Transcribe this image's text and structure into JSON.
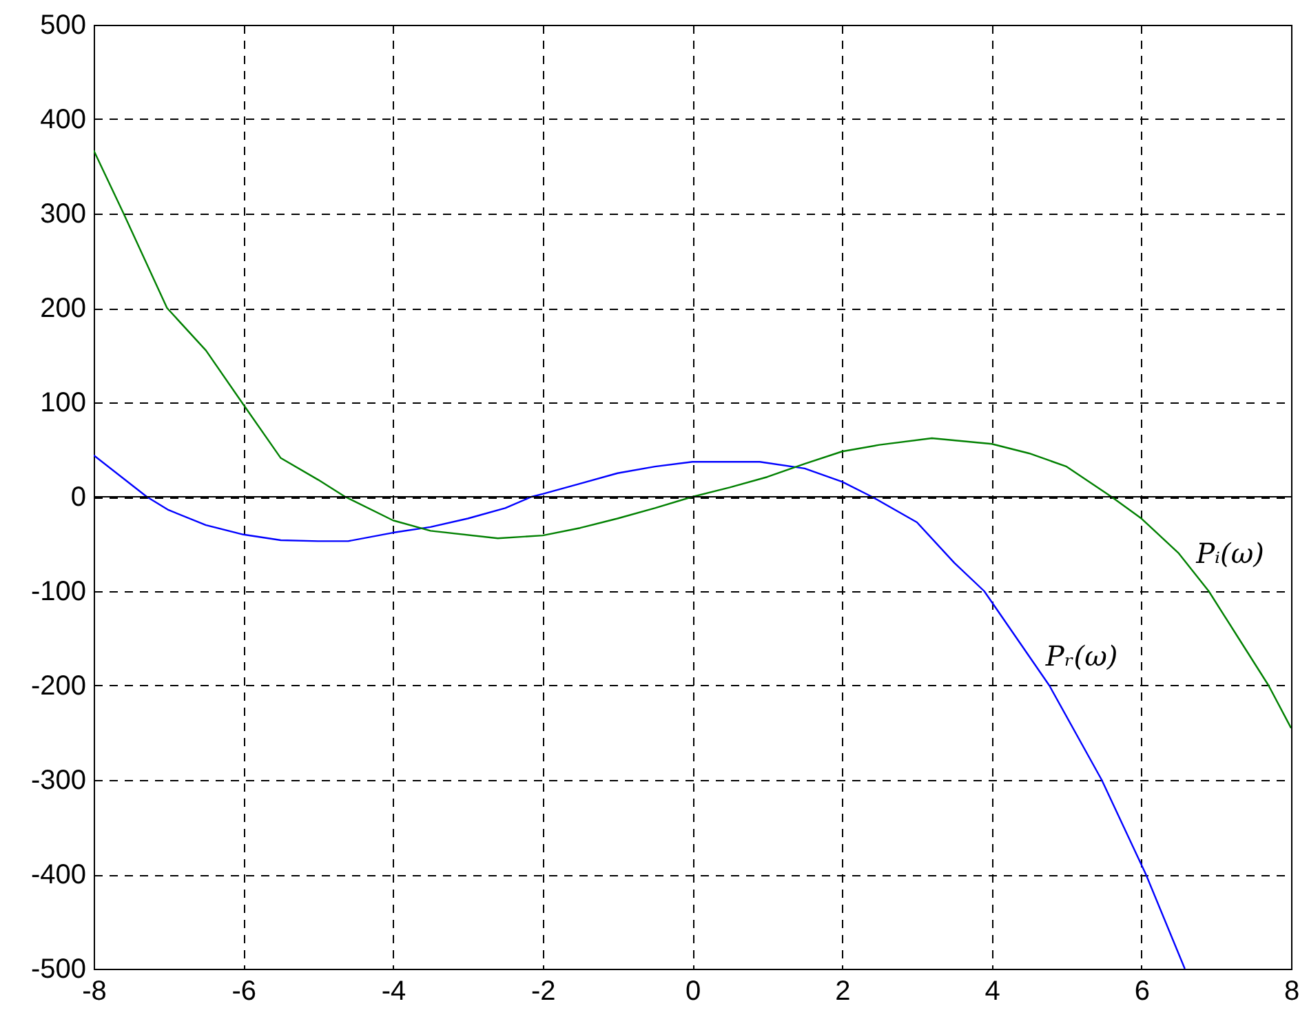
{
  "chart_data": {
    "type": "line",
    "series": [
      {
        "color": "#0000ff",
        "x": [
          -8,
          -7.29,
          -7,
          -6.5,
          -6,
          -5.5,
          -5,
          -4.6,
          -4,
          -3.5,
          -3,
          -2.5,
          -2.15,
          -2,
          -1.5,
          -1,
          -0.5,
          0,
          0.5,
          0.9,
          1.5,
          2,
          2.4,
          3,
          3.5,
          3.9,
          4.77,
          5.47,
          6.06,
          6.58
        ],
        "values": [
          44,
          0,
          -14,
          -30,
          -40,
          -46,
          -47,
          -47,
          -38,
          -32,
          -23,
          -12,
          0,
          3,
          14,
          25,
          32,
          37,
          37,
          37,
          30,
          16,
          0,
          -27,
          -70,
          -100,
          -200,
          -300,
          -400,
          -500
        ]
      },
      {
        "color": "#008000",
        "x": [
          -8,
          -7.6,
          -7.02,
          -6.5,
          -6.02,
          -5.5,
          -5,
          -4.64,
          -4,
          -3.5,
          -2.6,
          -2,
          -1.5,
          -1,
          -0.5,
          0,
          0.5,
          1,
          1.5,
          2,
          2.5,
          3.2,
          4,
          4.5,
          5,
          5.6,
          6,
          6.5,
          6.9,
          7.3,
          7.7,
          8
        ],
        "values": [
          367,
          300,
          200,
          155,
          100,
          41,
          18,
          0,
          -25,
          -36,
          -44,
          -41,
          -33,
          -23,
          -12,
          0,
          10,
          21,
          35,
          48,
          55,
          62,
          56,
          46,
          32,
          0,
          -23,
          -60,
          -100,
          -150,
          -200,
          -245
        ]
      }
    ],
    "annotations": [
      {
        "text": "Pᵢ(ω)",
        "x": 6.51,
        "y": -61
      },
      {
        "text": "Pᵣ(ω)",
        "x": 4.5,
        "y": -170
      }
    ],
    "ref_lines": [
      {
        "axis": "y",
        "value": 0,
        "color": "#000000"
      }
    ],
    "xlim": [
      -8,
      8
    ],
    "xticks": [
      -8,
      -6,
      -4,
      -2,
      0,
      2,
      4,
      6,
      8
    ],
    "ylim": [
      -500,
      500
    ],
    "yticks": [
      -500,
      -400,
      -300,
      -200,
      -100,
      0,
      100,
      200,
      300,
      400,
      500
    ],
    "grid": true
  }
}
